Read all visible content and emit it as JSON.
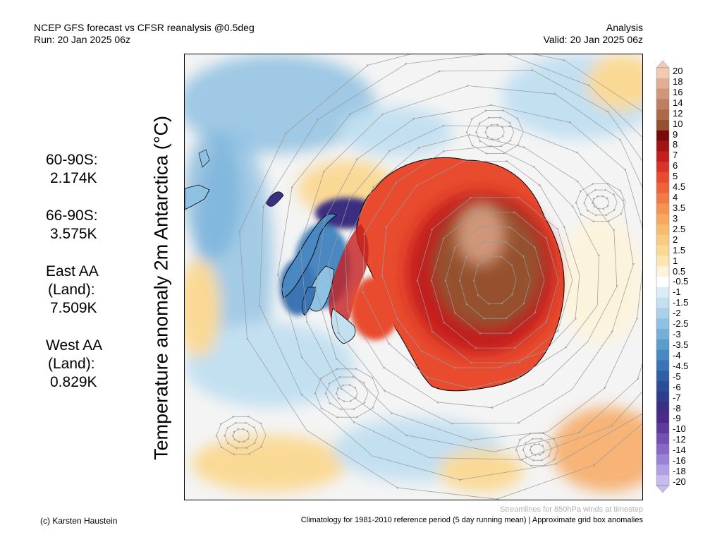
{
  "header": {
    "title_line1": "NCEP GFS forecast vs CFSR reanalysis @0.5deg",
    "title_line2": "Run: 20 Jan 2025 06z",
    "right_line1": "Analysis",
    "right_line2": "Valid: 20 Jan 2025 06z"
  },
  "vertical_title": "Temperature anomaly 2m Antarctica (°C)",
  "stats": [
    {
      "label": "60-90S:",
      "value": "2.174K"
    },
    {
      "label": "66-90S:",
      "value": "3.575K"
    },
    {
      "label": "East AA",
      "sub": "(Land):",
      "value": "7.509K"
    },
    {
      "label": "West AA",
      "sub": "(Land):",
      "value": "0.829K"
    }
  ],
  "colorbar": {
    "labels": [
      "20",
      "18",
      "16",
      "14",
      "12",
      "10",
      "9",
      "8",
      "7",
      "6",
      "5",
      "4.5",
      "4",
      "3.5",
      "3",
      "2.5",
      "2",
      "1.5",
      "1",
      "0.5",
      "-0.5",
      "-1",
      "-1.5",
      "-2",
      "-2.5",
      "-3",
      "-3.5",
      "-4",
      "-4.5",
      "-5",
      "-6",
      "-7",
      "-8",
      "-9",
      "-10",
      "-12",
      "-14",
      "-16",
      "-18",
      "-20"
    ],
    "colors": [
      "#f2c9b3",
      "#dfae95",
      "#cf9679",
      "#be7f61",
      "#ad6a4b",
      "#95512f",
      "#7a0b0b",
      "#a11414",
      "#c41f1f",
      "#d93526",
      "#e84b2e",
      "#ef623a",
      "#f27b45",
      "#f59452",
      "#f7a85f",
      "#f8bb6e",
      "#f9cb80",
      "#fad995",
      "#fbe6b3",
      "#fcf3dc",
      "#ffffff",
      "#dcecf7",
      "#c3e0f1",
      "#a9d1ea",
      "#8fc1e2",
      "#74afd8",
      "#5c9ccd",
      "#4a88c1",
      "#3b74b4",
      "#2f5fa6",
      "#2d4c98",
      "#2e3c8a",
      "#3a2f80",
      "#4c2a8a",
      "#5e3a9f",
      "#7250b4",
      "#8668c5",
      "#9a83d4",
      "#b09fe2",
      "#c8bcef"
    ]
  },
  "map": {
    "colors": {
      "ocean_neutral": "#f4f4f4",
      "cold_light": "#c3e0f1",
      "cold_mid": "#8fc1e2",
      "cold_dark": "#4a88c1",
      "cold_deep": "#3a2f80",
      "warm_light": "#fad995",
      "warm_mid": "#f7a85f",
      "warm_strong": "#e84b2e",
      "warm_deep": "#c41f1f",
      "plateau": "#95512f",
      "plateau_light": "#cf9679",
      "coast": "#000000",
      "streamline": "#9a9a9a"
    }
  },
  "footer": {
    "left": "(c) Karsten Haustein",
    "right": "Climatology for 1981-2010 reference period (5 day running mean) | Approximate grid box anomalies",
    "note": "Streamlines for 850hPa winds at timestep"
  }
}
